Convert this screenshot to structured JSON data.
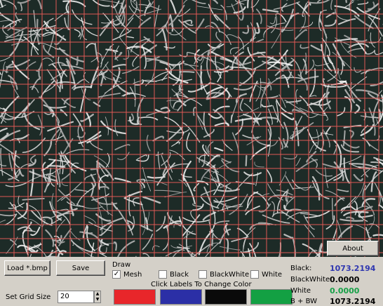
{
  "buttons": {
    "load": "Load *.bmp",
    "save": "Save",
    "about": "About"
  },
  "grid_size": {
    "label": "Set Grid Size",
    "value": 20
  },
  "draw": {
    "title": "Draw",
    "options": [
      {
        "label": "Mesh",
        "checked": true
      },
      {
        "label": "Black",
        "checked": false
      },
      {
        "label": "BlackWhite",
        "checked": false
      },
      {
        "label": "White",
        "checked": false
      }
    ]
  },
  "hint": "Click Labels To Change Color",
  "stats": [
    {
      "label": "Black:",
      "value": "1073.2194"
    },
    {
      "label": "BlackWhite",
      "value": "0.0000"
    },
    {
      "label": "White",
      "value": "0.0000"
    },
    {
      "label": "B + BW",
      "value": "1073.2194"
    }
  ]
}
